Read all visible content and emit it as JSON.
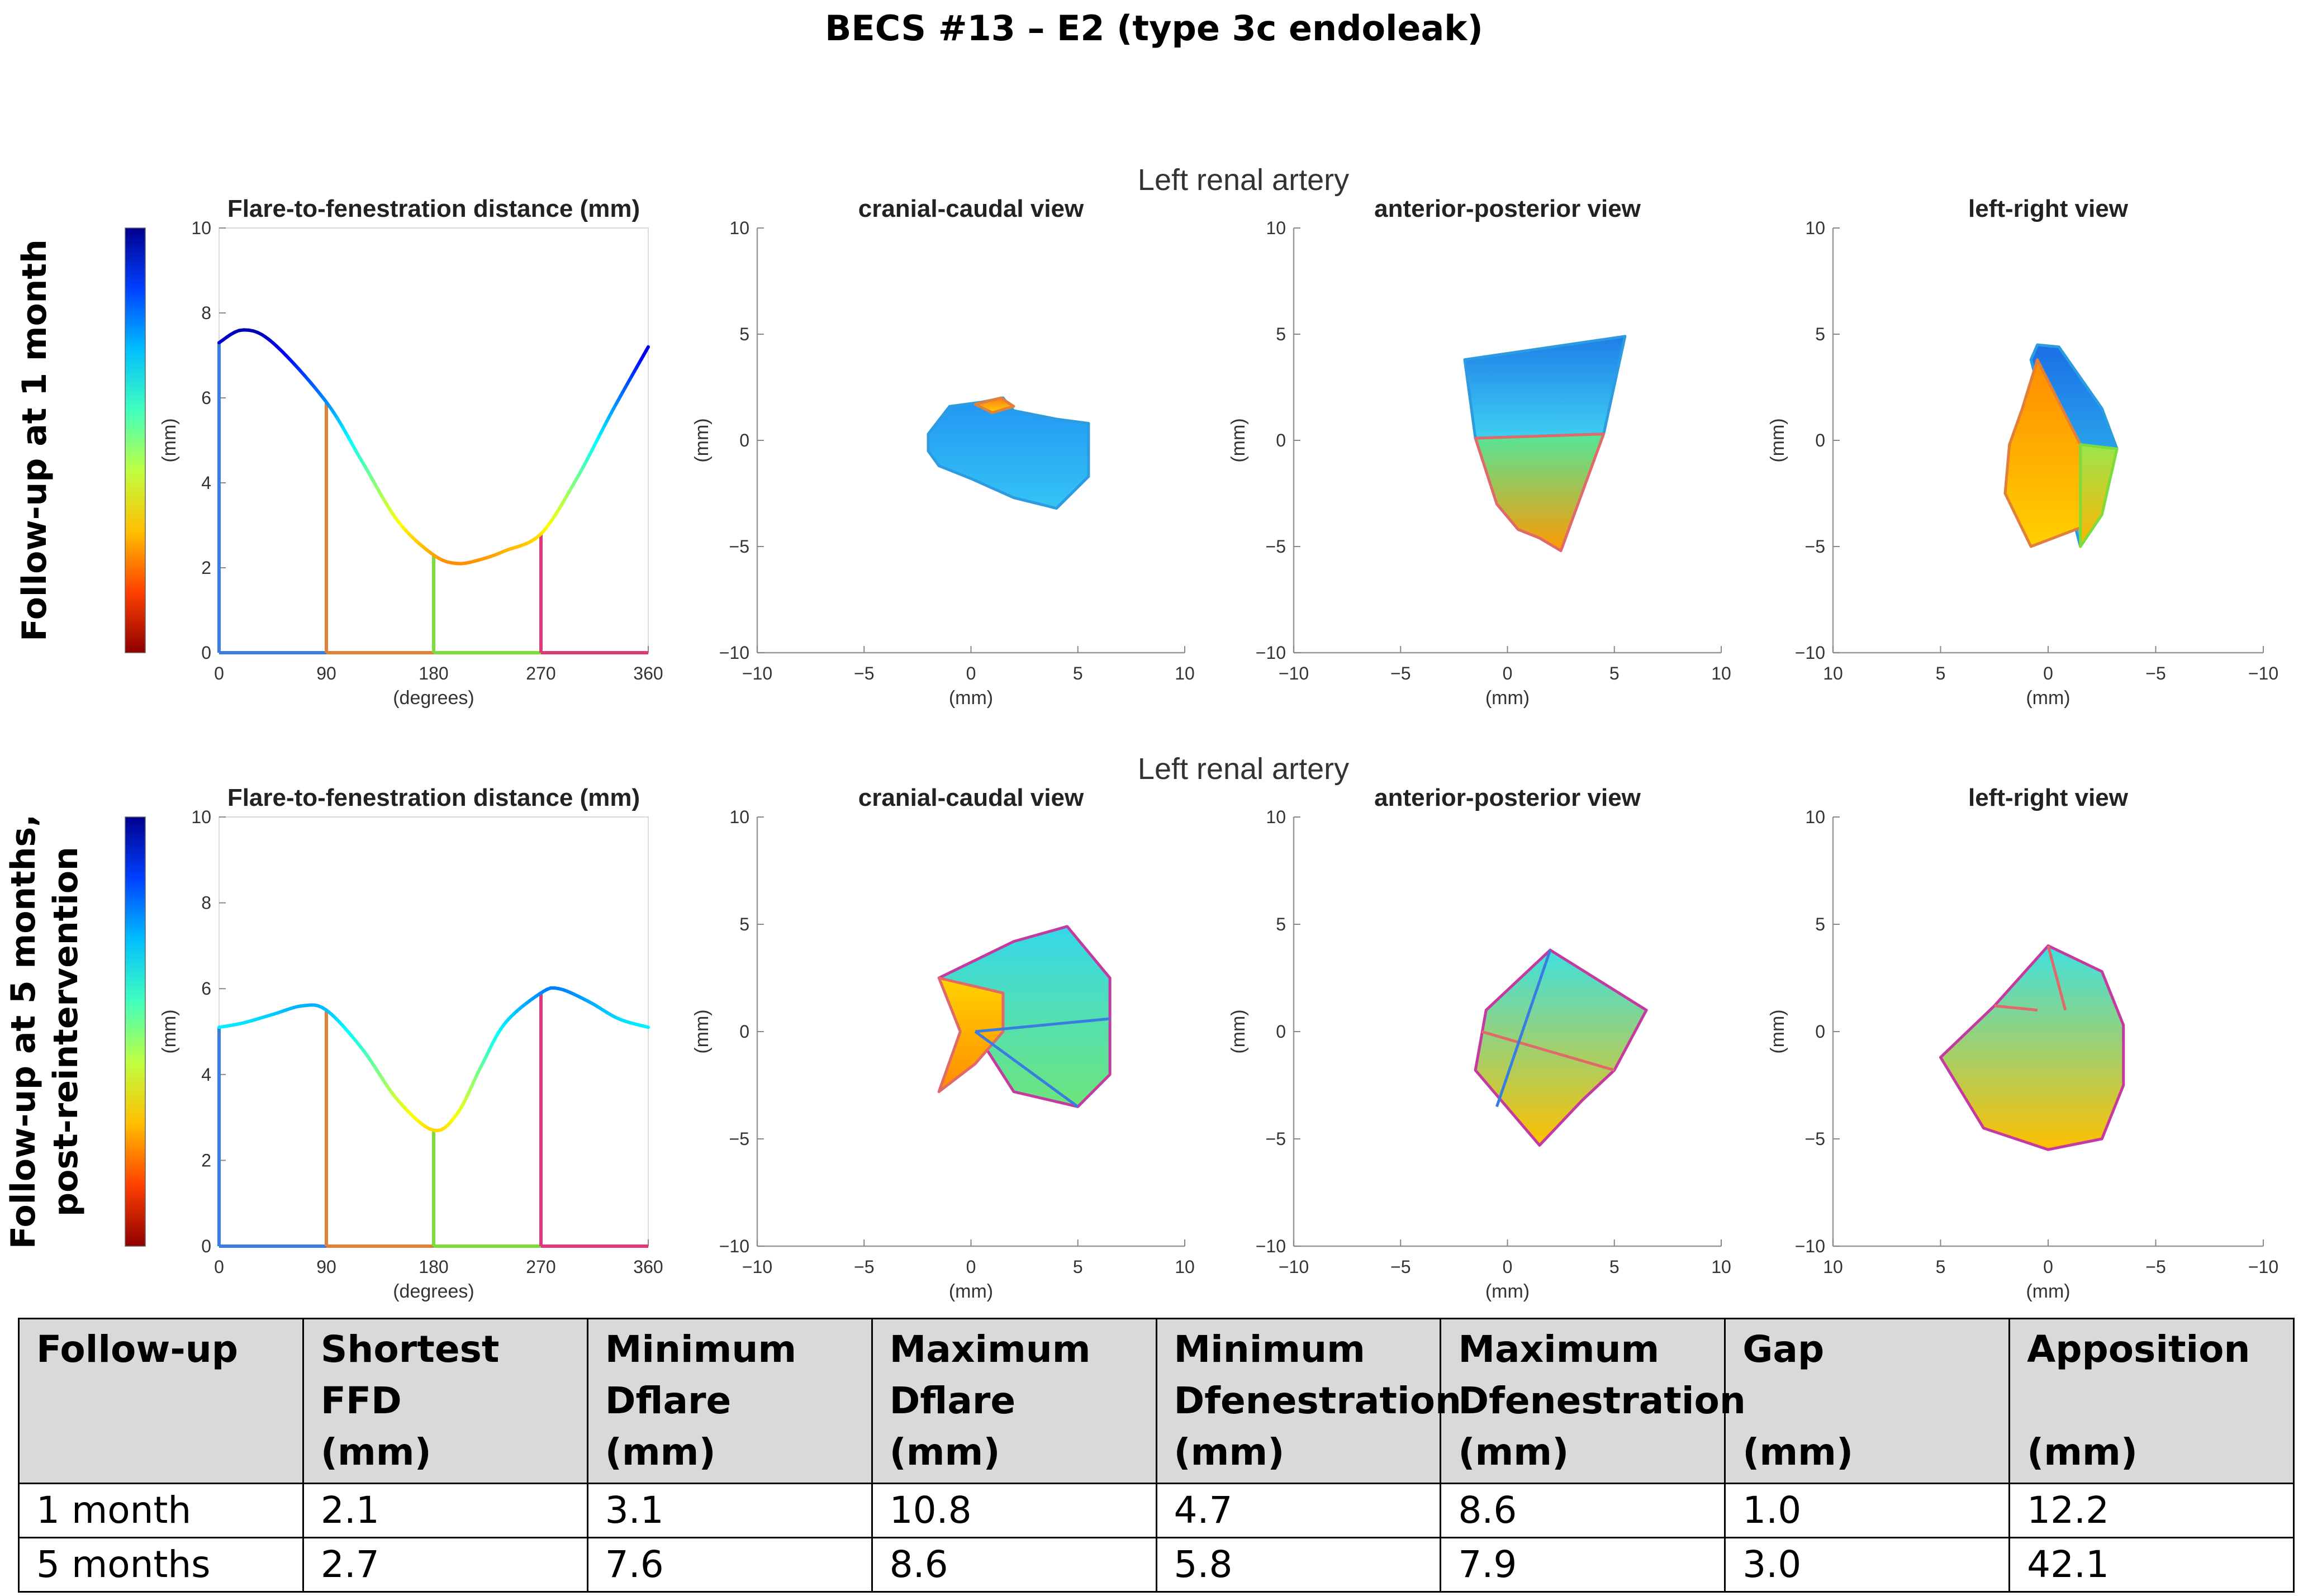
{
  "title": "BECS #13 – E2 (type 3c endoleak)",
  "rows": [
    {
      "row_label_lines": [
        "Follow-up at 1 month"
      ],
      "artery_label": "Left renal artery",
      "colorbar_colors": [
        "#00008f",
        "#0040ff",
        "#00bfff",
        "#40ffbf",
        "#bfff40",
        "#ffbf00",
        "#ff4000",
        "#8f0000"
      ]
    },
    {
      "row_label_lines": [
        "Follow-up at 5 months,",
        "post-reintervention"
      ],
      "artery_label": "Left renal artery",
      "colorbar_colors": [
        "#00008f",
        "#0040ff",
        "#00bfff",
        "#40ffbf",
        "#bfff40",
        "#ffbf00",
        "#ff4000",
        "#8f0000"
      ]
    }
  ],
  "chart_data": [
    {
      "type": "line",
      "title": "Flare-to-fenestration distance (mm)",
      "xlabel": "(degrees)",
      "ylabel": "(mm)",
      "xlim": [
        0,
        360
      ],
      "ylim": [
        0,
        10
      ],
      "xticks": [
        0,
        90,
        180,
        270,
        360
      ],
      "yticks": [
        0,
        2,
        4,
        6,
        8,
        10
      ],
      "x": [
        0,
        20,
        45,
        90,
        120,
        150,
        180,
        200,
        220,
        240,
        270,
        300,
        330,
        360
      ],
      "values": [
        7.3,
        7.6,
        7.3,
        5.9,
        4.5,
        3.1,
        2.3,
        2.1,
        2.2,
        2.4,
        2.8,
        4.1,
        5.7,
        7.2
      ],
      "markers": [
        {
          "x": 0,
          "value": 7.3,
          "color": "#3a7de0"
        },
        {
          "x": 90,
          "value": 5.9,
          "color": "#e0803a"
        },
        {
          "x": 180,
          "value": 2.3,
          "color": "#7ddc3a"
        },
        {
          "x": 270,
          "value": 2.8,
          "color": "#e03a7d"
        }
      ]
    },
    {
      "type": "area",
      "title": "cranial-caudal view",
      "xlabel": "(mm)",
      "ylabel": "(mm)",
      "xlim": [
        -10,
        10
      ],
      "ylim": [
        -10,
        10
      ],
      "xticks": [
        -10,
        -5,
        0,
        5,
        10
      ],
      "yticks": [
        -10,
        -5,
        0,
        5,
        10
      ],
      "xreversed": false,
      "surfaces": [
        {
          "x": [
            -2,
            -1,
            0.5,
            1.5,
            2,
            4,
            5.5,
            5.5,
            4,
            2,
            0,
            -1.5,
            -2
          ],
          "y": [
            0.3,
            1.6,
            1.8,
            2,
            1.4,
            1.0,
            0.8,
            -1.7,
            -3.2,
            -2.7,
            -1.8,
            -1.2,
            -0.5
          ],
          "from": "#2196f3",
          "to": "#35c4f5",
          "stroke": "#2c9be0"
        },
        {
          "x": [
            0.2,
            1.4,
            2,
            1,
            0.2
          ],
          "y": [
            1.7,
            2.0,
            1.6,
            1.3,
            1.7
          ],
          "from": "#ff7a1a",
          "to": "#ffd200",
          "stroke": "#e0803a"
        }
      ],
      "edges": []
    },
    {
      "type": "area",
      "title": "anterior-posterior view",
      "xlabel": "(mm)",
      "ylabel": "(mm)",
      "xlim": [
        -10,
        10
      ],
      "ylim": [
        -10,
        10
      ],
      "xticks": [
        -10,
        -5,
        0,
        5,
        10
      ],
      "yticks": [
        -10,
        -5,
        0,
        5,
        10
      ],
      "xreversed": false,
      "surfaces": [
        {
          "x": [
            -2,
            5.5,
            4.5,
            -1.5,
            -2
          ],
          "y": [
            3.8,
            4.9,
            0.3,
            0.1,
            3.8
          ],
          "from": "#1e7ee8",
          "to": "#3fd0f2",
          "stroke": "#2c9be0"
        },
        {
          "x": [
            -1.5,
            4.5,
            2.5,
            1.5,
            0.5,
            -0.5,
            -1.5
          ],
          "y": [
            0.1,
            0.3,
            -5.2,
            -4.6,
            -4.2,
            -3.0,
            0.1
          ],
          "from": "#52e69a",
          "to": "#ff9a00",
          "stroke": "#e06a6a"
        }
      ],
      "edges": []
    },
    {
      "type": "area",
      "title": "left-right view",
      "xlabel": "(mm)",
      "ylabel": "(mm)",
      "xlim": [
        10,
        -10
      ],
      "ylim": [
        -10,
        10
      ],
      "xticks": [
        10,
        5,
        0,
        -5,
        -10
      ],
      "yticks": [
        -10,
        -5,
        0,
        5,
        10
      ],
      "xreversed": true,
      "surfaces": [
        {
          "x": [
            0.5,
            -0.5,
            -2.5,
            -3.2,
            -1.5,
            0.8,
            0.5
          ],
          "y": [
            4.5,
            4.4,
            1.5,
            -0.4,
            -5.0,
            3.8,
            4.5
          ],
          "from": "#1a6fe6",
          "to": "#35d2f0",
          "stroke": "#2c9be0"
        },
        {
          "x": [
            1.2,
            0.5,
            -1.5,
            -1.8,
            0.8,
            2.0,
            1.8,
            1.2
          ],
          "y": [
            1.5,
            3.8,
            -0.2,
            -4.0,
            -5.0,
            -2.5,
            -0.2,
            1.5
          ],
          "from": "#ff8c00",
          "to": "#ffd000",
          "stroke": "#e0803a"
        },
        {
          "x": [
            -1.5,
            -3.2,
            -2.5,
            -1.5
          ],
          "y": [
            -0.2,
            -0.4,
            -3.5,
            -5.0
          ],
          "from": "#9be64d",
          "to": "#ffb400",
          "stroke": "#7ddc3a"
        }
      ],
      "edges": []
    },
    {
      "type": "line",
      "title": "Flare-to-fenestration distance (mm)",
      "xlabel": "(degrees)",
      "ylabel": "(mm)",
      "xlim": [
        0,
        360
      ],
      "ylim": [
        0,
        10
      ],
      "xticks": [
        0,
        90,
        180,
        270,
        360
      ],
      "yticks": [
        0,
        2,
        4,
        6,
        8,
        10
      ],
      "x": [
        0,
        20,
        45,
        70,
        90,
        120,
        150,
        180,
        200,
        220,
        240,
        270,
        285,
        310,
        335,
        360
      ],
      "values": [
        5.1,
        5.2,
        5.4,
        5.6,
        5.5,
        4.6,
        3.4,
        2.7,
        3.1,
        4.2,
        5.2,
        5.9,
        6.0,
        5.7,
        5.3,
        5.1
      ],
      "markers": [
        {
          "x": 0,
          "value": 5.1,
          "color": "#3a7de0"
        },
        {
          "x": 90,
          "value": 5.5,
          "color": "#e0803a"
        },
        {
          "x": 180,
          "value": 2.7,
          "color": "#7ddc3a"
        },
        {
          "x": 270,
          "value": 5.9,
          "color": "#e03a7d"
        }
      ]
    },
    {
      "type": "area",
      "title": "cranial-caudal view",
      "xlabel": "(mm)",
      "ylabel": "(mm)",
      "xlim": [
        -10,
        10
      ],
      "ylim": [
        -10,
        10
      ],
      "xticks": [
        -10,
        -5,
        0,
        5,
        10
      ],
      "yticks": [
        -10,
        -5,
        0,
        5,
        10
      ],
      "xreversed": false,
      "surfaces": [
        {
          "x": [
            -1.5,
            2,
            4.5,
            6.5,
            6.5,
            5,
            2,
            0.2,
            -1.5
          ],
          "y": [
            2.5,
            4.2,
            4.9,
            2.5,
            -2.0,
            -3.5,
            -2.8,
            0.0,
            2.5
          ],
          "from": "#35d8ea",
          "to": "#6fe67a",
          "stroke": "#c43aa0"
        },
        {
          "x": [
            -1.5,
            1.5,
            1.5,
            0.2,
            -1.5,
            -0.5,
            -1.5
          ],
          "y": [
            2.5,
            1.8,
            0,
            -1.5,
            -2.8,
            0.0,
            2.5
          ],
          "from": "#ffd200",
          "to": "#ff8c00",
          "stroke": "#e06a6a"
        }
      ],
      "edges": [
        {
          "x": [
            0.2,
            6.5
          ],
          "y": [
            0.0,
            0.6
          ],
          "color": "#3a7de0"
        },
        {
          "x": [
            0.2,
            5.0
          ],
          "y": [
            0.0,
            -3.5
          ],
          "color": "#3a7de0"
        }
      ]
    },
    {
      "type": "area",
      "title": "anterior-posterior view",
      "xlabel": "(mm)",
      "ylabel": "(mm)",
      "xlim": [
        -10,
        10
      ],
      "ylim": [
        -10,
        10
      ],
      "xticks": [
        -10,
        -5,
        0,
        5,
        10
      ],
      "yticks": [
        -10,
        -5,
        0,
        5,
        10
      ],
      "xreversed": false,
      "surfaces": [
        {
          "x": [
            2,
            6.5,
            5,
            3.5,
            1.5,
            -1.5,
            -1,
            2
          ],
          "y": [
            3.8,
            1.0,
            -1.8,
            -3.2,
            -5.3,
            -1.8,
            1.0,
            3.8
          ],
          "from": "#3fe0e0",
          "to": "#ffc000",
          "stroke": "#c43aa0"
        }
      ],
      "edges": [
        {
          "x": [
            -1.2,
            5.0
          ],
          "y": [
            0.0,
            -1.8
          ],
          "color": "#e06a6a"
        },
        {
          "x": [
            2,
            -0.5
          ],
          "y": [
            3.8,
            -3.5
          ],
          "color": "#3a7de0"
        }
      ]
    },
    {
      "type": "area",
      "title": "left-right view",
      "xlabel": "(mm)",
      "ylabel": "(mm)",
      "xlim": [
        10,
        -10
      ],
      "ylim": [
        -10,
        10
      ],
      "xticks": [
        10,
        5,
        0,
        -5,
        -10
      ],
      "yticks": [
        -10,
        -5,
        0,
        5,
        10
      ],
      "xreversed": true,
      "surfaces": [
        {
          "x": [
            5,
            2.5,
            0,
            -2.5,
            -3.5,
            -3.5,
            -2.5,
            0,
            3,
            5
          ],
          "y": [
            -1.2,
            1.2,
            4.0,
            2.8,
            0.3,
            -2.5,
            -5.0,
            -5.5,
            -4.5,
            -1.2
          ],
          "from": "#3fe0e0",
          "to": "#ffc000",
          "stroke": "#c43aa0"
        }
      ],
      "edges": [
        {
          "x": [
            2.5,
            0.5
          ],
          "y": [
            1.2,
            1.0
          ],
          "color": "#e06a6a"
        },
        {
          "x": [
            0,
            -0.8
          ],
          "y": [
            4.0,
            1.0
          ],
          "color": "#e06a6a"
        }
      ]
    }
  ],
  "table": {
    "headers": [
      [
        "Follow-up",
        "",
        ""
      ],
      [
        "Shortest",
        "FFD",
        "(mm)"
      ],
      [
        "Minimum",
        "Dflare",
        "(mm)"
      ],
      [
        "Maximum",
        "Dflare",
        "(mm)"
      ],
      [
        "Minimum",
        "Dfenestration",
        "(mm)"
      ],
      [
        "Maximum",
        "Dfenestration",
        "(mm)"
      ],
      [
        "Gap",
        "",
        "(mm)"
      ],
      [
        "Apposition",
        "",
        "(mm)"
      ]
    ],
    "rows": [
      [
        "1 month",
        "2.1",
        "3.1",
        "10.8",
        "4.7",
        "8.6",
        "1.0",
        "12.2"
      ],
      [
        "5 months",
        "2.7",
        "7.6",
        "8.6",
        "5.8",
        "7.9",
        "3.0",
        "42.1"
      ]
    ]
  }
}
